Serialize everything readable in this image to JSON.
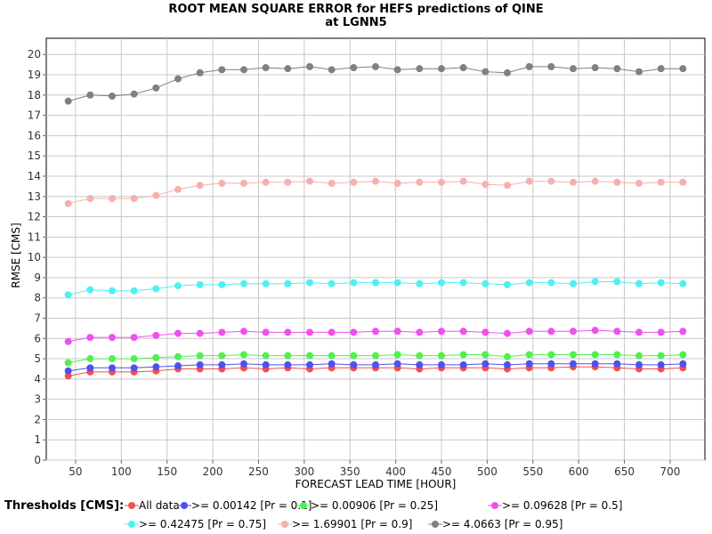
{
  "chart_data": {
    "type": "line",
    "title": "ROOT MEAN SQUARE ERROR for HEFS predictions of QINE",
    "subtitle": "at LGNN5",
    "xlabel": "FORECAST LEAD TIME [HOUR]",
    "ylabel": "RMSE [CMS]",
    "xlim": [
      18,
      738
    ],
    "ylim": [
      0,
      20.8
    ],
    "xticks": [
      50,
      100,
      150,
      200,
      250,
      300,
      350,
      400,
      450,
      500,
      550,
      600,
      650,
      700
    ],
    "xtick_labels": [
      "50",
      "100",
      "150",
      "200",
      "250",
      "300",
      "350",
      "400",
      "450",
      "500",
      "550",
      "600",
      "650",
      "700"
    ],
    "yticks": [
      0,
      1,
      2,
      3,
      4,
      5,
      6,
      7,
      8,
      9,
      10,
      11,
      12,
      13,
      14,
      15,
      16,
      17,
      18,
      19,
      20
    ],
    "ytick_labels": [
      "0",
      "1",
      "2",
      "3",
      "4",
      "5",
      "6",
      "7",
      "8",
      "9",
      "10",
      "11",
      "12",
      "13",
      "14",
      "15",
      "16",
      "17",
      "18",
      "19",
      "20"
    ],
    "grid": true,
    "legend_title": "Thresholds [CMS]:",
    "legend_position": "bottom",
    "x": [
      42,
      66,
      90,
      114,
      138,
      162,
      186,
      210,
      234,
      258,
      282,
      306,
      330,
      354,
      378,
      402,
      426,
      450,
      474,
      498,
      522,
      546,
      570,
      594,
      618,
      642,
      666,
      690,
      714
    ],
    "series": [
      {
        "name": "All data",
        "color": "#f05050",
        "values": [
          4.15,
          4.35,
          4.35,
          4.35,
          4.4,
          4.5,
          4.5,
          4.5,
          4.55,
          4.5,
          4.55,
          4.5,
          4.55,
          4.55,
          4.55,
          4.55,
          4.5,
          4.55,
          4.55,
          4.55,
          4.5,
          4.55,
          4.55,
          4.6,
          4.6,
          4.55,
          4.5,
          4.5,
          4.55
        ]
      },
      {
        "name": ">= 0.00142 [Pr = 0.1]",
        "color": "#5050f0",
        "values": [
          4.4,
          4.55,
          4.55,
          4.55,
          4.6,
          4.65,
          4.7,
          4.7,
          4.75,
          4.7,
          4.7,
          4.7,
          4.75,
          4.7,
          4.7,
          4.75,
          4.7,
          4.7,
          4.7,
          4.75,
          4.7,
          4.75,
          4.75,
          4.75,
          4.75,
          4.75,
          4.7,
          4.7,
          4.75
        ]
      },
      {
        "name": ">= 0.00906 [Pr = 0.25]",
        "color": "#50f050",
        "values": [
          4.8,
          5.0,
          5.0,
          5.0,
          5.05,
          5.1,
          5.15,
          5.15,
          5.2,
          5.15,
          5.15,
          5.15,
          5.15,
          5.15,
          5.15,
          5.2,
          5.15,
          5.15,
          5.2,
          5.2,
          5.1,
          5.2,
          5.2,
          5.2,
          5.2,
          5.2,
          5.15,
          5.15,
          5.2
        ]
      },
      {
        "name": ">= 0.09628 [Pr = 0.5]",
        "color": "#f050f0",
        "values": [
          5.85,
          6.05,
          6.05,
          6.05,
          6.15,
          6.25,
          6.25,
          6.3,
          6.35,
          6.3,
          6.3,
          6.3,
          6.3,
          6.3,
          6.35,
          6.35,
          6.3,
          6.35,
          6.35,
          6.3,
          6.25,
          6.35,
          6.35,
          6.35,
          6.4,
          6.35,
          6.3,
          6.3,
          6.35
        ]
      },
      {
        "name": ">= 0.42475 [Pr = 0.75]",
        "color": "#50f0f0",
        "values": [
          8.15,
          8.4,
          8.35,
          8.35,
          8.45,
          8.6,
          8.65,
          8.65,
          8.7,
          8.7,
          8.7,
          8.75,
          8.7,
          8.75,
          8.75,
          8.75,
          8.7,
          8.75,
          8.75,
          8.7,
          8.65,
          8.75,
          8.75,
          8.7,
          8.8,
          8.8,
          8.7,
          8.75,
          8.7
        ]
      },
      {
        "name": ">= 1.69901 [Pr = 0.9]",
        "color": "#f5b0b0",
        "values": [
          12.65,
          12.9,
          12.9,
          12.9,
          13.05,
          13.35,
          13.55,
          13.65,
          13.65,
          13.7,
          13.7,
          13.75,
          13.65,
          13.7,
          13.75,
          13.65,
          13.7,
          13.7,
          13.75,
          13.6,
          13.55,
          13.75,
          13.75,
          13.7,
          13.75,
          13.7,
          13.65,
          13.7,
          13.7
        ]
      },
      {
        "name": ">= 4.0663 [Pr = 0.95]",
        "color": "#808080",
        "values": [
          17.7,
          18.0,
          17.95,
          18.05,
          18.35,
          18.8,
          19.1,
          19.25,
          19.25,
          19.35,
          19.3,
          19.4,
          19.25,
          19.35,
          19.4,
          19.25,
          19.3,
          19.3,
          19.35,
          19.15,
          19.1,
          19.4,
          19.4,
          19.3,
          19.35,
          19.3,
          19.15,
          19.3,
          19.3
        ]
      }
    ]
  }
}
